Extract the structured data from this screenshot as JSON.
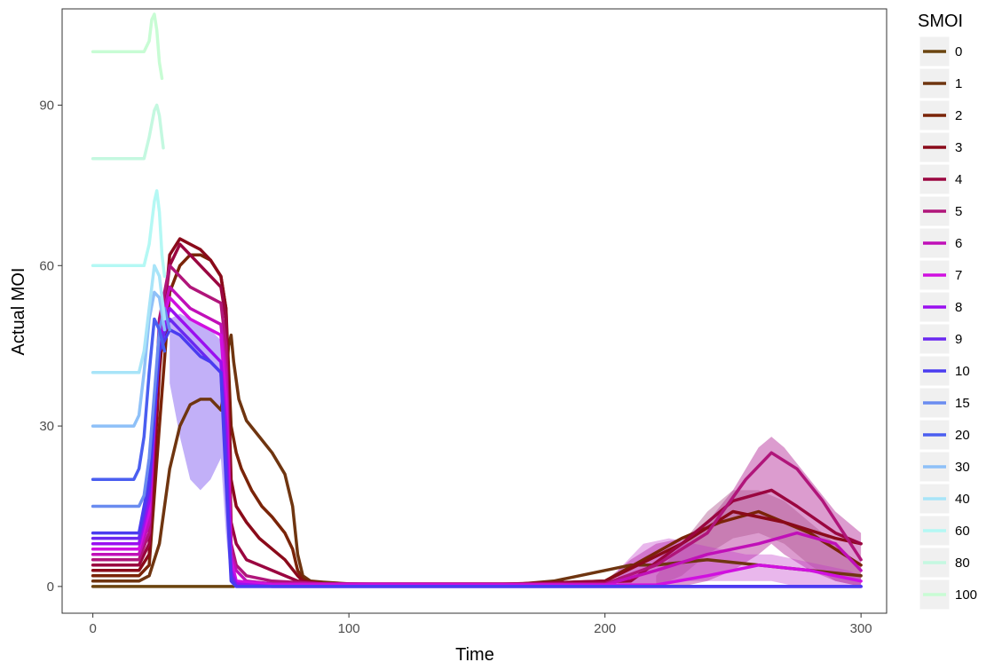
{
  "chart_data": {
    "type": "line",
    "title": "",
    "xlabel": "Time",
    "ylabel": "Actual MOI",
    "xlim": [
      -12,
      310
    ],
    "ylim": [
      -5,
      108
    ],
    "x_ticks": [
      0,
      100,
      200,
      300
    ],
    "y_ticks": [
      0,
      30,
      60,
      90
    ],
    "x_tick_labels": [
      "0",
      "100",
      "200",
      "300"
    ],
    "y_tick_labels": [
      "0",
      "30",
      "60",
      "90"
    ],
    "grid": false,
    "legend": {
      "title": "SMOI",
      "position": "right",
      "entries": [
        {
          "label": "0",
          "color": "#6b4510"
        },
        {
          "label": "1",
          "color": "#6f3510"
        },
        {
          "label": "2",
          "color": "#7a2408"
        },
        {
          "label": "3",
          "color": "#8a0a1a"
        },
        {
          "label": "4",
          "color": "#9a0640"
        },
        {
          "label": "5",
          "color": "#b0157a"
        },
        {
          "label": "6",
          "color": "#c010b8"
        },
        {
          "label": "7",
          "color": "#d010e0"
        },
        {
          "label": "8",
          "color": "#9a10f0"
        },
        {
          "label": "9",
          "color": "#6a28f0"
        },
        {
          "label": "10",
          "color": "#4a3cf0"
        },
        {
          "label": "15",
          "color": "#6a8cf0"
        },
        {
          "label": "20",
          "color": "#4a5ef0"
        },
        {
          "label": "30",
          "color": "#8ec0f8"
        },
        {
          "label": "40",
          "color": "#a8e4f8"
        },
        {
          "label": "60",
          "color": "#b4f8f4"
        },
        {
          "label": "80",
          "color": "#c4f8e0"
        },
        {
          "label": "100",
          "color": "#c8fcd4"
        }
      ]
    },
    "bands": [
      {
        "series": "8",
        "color": "#9a7cf4",
        "opacity": 0.6,
        "x": [
          30,
          34,
          38,
          42,
          46,
          50,
          52,
          54
        ],
        "upper": [
          50,
          51,
          50,
          49,
          48,
          46,
          44,
          0
        ],
        "lower": [
          38,
          28,
          20,
          18,
          20,
          24,
          10,
          0
        ]
      },
      {
        "series": "5",
        "color": "#c04aa8",
        "opacity": 0.55,
        "x": [
          200,
          210,
          220,
          230,
          240,
          250,
          260,
          265,
          270,
          280,
          290,
          300
        ],
        "upper": [
          1,
          5,
          8,
          9,
          12,
          18,
          26,
          28,
          26,
          20,
          14,
          10
        ],
        "lower": [
          0,
          0,
          0,
          0,
          1,
          3,
          6,
          8,
          6,
          3,
          1,
          0
        ]
      },
      {
        "series": "4",
        "color": "#b05890",
        "opacity": 0.45,
        "x": [
          220,
          230,
          240,
          250,
          260,
          270,
          280,
          290,
          300
        ],
        "upper": [
          2,
          8,
          14,
          18,
          18,
          16,
          12,
          8,
          4
        ],
        "lower": [
          0,
          2,
          6,
          9,
          10,
          8,
          4,
          1,
          0
        ]
      },
      {
        "series": "6",
        "color": "#c030c8",
        "opacity": 0.35,
        "x": [
          205,
          215,
          225,
          235,
          245,
          255,
          265,
          275,
          285,
          295,
          300
        ],
        "upper": [
          3,
          8,
          9,
          8,
          7,
          6,
          6,
          5,
          4,
          3,
          2
        ],
        "lower": [
          0,
          0,
          1,
          1,
          1,
          1,
          1,
          0,
          0,
          0,
          0
        ]
      }
    ],
    "series": [
      {
        "name": "0",
        "color": "#6b4510",
        "x": [
          0,
          55
        ],
        "y": [
          0,
          0
        ]
      },
      {
        "name": "1",
        "color": "#6f3510",
        "x": [
          0,
          18,
          22,
          26,
          30,
          34,
          38,
          42,
          46,
          50,
          52,
          53,
          54,
          55,
          57,
          60,
          65,
          70,
          75,
          78,
          80,
          82,
          85,
          90,
          100,
          120,
          140,
          160,
          180,
          200,
          210,
          220,
          240,
          260,
          280,
          300
        ],
        "y": [
          1,
          1,
          2,
          8,
          22,
          30,
          34,
          35,
          35,
          33,
          38,
          45,
          47,
          42,
          35,
          31,
          28,
          25,
          21,
          15,
          6,
          2,
          1,
          0.8,
          0.5,
          0.2,
          0.3,
          0.2,
          1,
          3,
          4,
          4,
          5,
          4,
          3,
          2
        ]
      },
      {
        "name": "2",
        "color": "#7a2408",
        "x": [
          0,
          18,
          22,
          26,
          30,
          34,
          38,
          42,
          46,
          50,
          52,
          54,
          56,
          58,
          62,
          66,
          70,
          75,
          78,
          80,
          82,
          84,
          90,
          120,
          160,
          200,
          230,
          245,
          260,
          280,
          300
        ],
        "y": [
          2,
          2,
          4,
          30,
          55,
          60,
          62,
          62,
          61,
          58,
          52,
          30,
          25,
          22,
          18,
          15,
          13,
          10,
          7,
          3,
          1.5,
          1,
          0.5,
          0.3,
          0.3,
          1,
          9,
          12,
          14,
          10,
          4
        ]
      },
      {
        "name": "3",
        "color": "#8a0a1a",
        "x": [
          0,
          18,
          22,
          26,
          30,
          34,
          38,
          42,
          46,
          50,
          52,
          54,
          56,
          60,
          65,
          70,
          75,
          80,
          82,
          90,
          150,
          200,
          230,
          250,
          270,
          290,
          300
        ],
        "y": [
          3,
          3,
          6,
          40,
          62,
          65,
          64,
          63,
          61,
          58,
          52,
          20,
          15,
          12,
          9,
          7,
          5,
          2,
          1,
          0.5,
          0.3,
          1,
          8,
          14,
          12,
          9,
          8
        ]
      },
      {
        "name": "4",
        "color": "#9a0640",
        "x": [
          0,
          18,
          22,
          26,
          30,
          34,
          38,
          42,
          46,
          50,
          52,
          54,
          56,
          60,
          70,
          80,
          90,
          150,
          210,
          230,
          250,
          265,
          275,
          290,
          300
        ],
        "y": [
          4,
          4,
          8,
          45,
          60,
          64,
          62,
          60,
          58,
          56,
          50,
          12,
          8,
          5,
          3,
          1,
          0.5,
          0.3,
          1,
          8,
          16,
          18,
          15,
          10,
          8
        ]
      },
      {
        "name": "5",
        "color": "#b0157a",
        "x": [
          0,
          18,
          22,
          26,
          30,
          34,
          38,
          42,
          46,
          50,
          52,
          54,
          56,
          60,
          70,
          90,
          200,
          220,
          240,
          255,
          265,
          275,
          285,
          300
        ],
        "y": [
          5,
          5,
          10,
          50,
          60,
          58,
          56,
          55,
          54,
          53,
          45,
          8,
          4,
          2,
          1,
          0.5,
          0.5,
          4,
          10,
          20,
          25,
          22,
          16,
          5
        ]
      },
      {
        "name": "6",
        "color": "#c010b8",
        "x": [
          0,
          18,
          22,
          26,
          30,
          34,
          38,
          42,
          46,
          50,
          52,
          54,
          56,
          60,
          70,
          200,
          220,
          240,
          260,
          275,
          290,
          300
        ],
        "y": [
          6,
          6,
          12,
          48,
          56,
          54,
          52,
          51,
          50,
          49,
          40,
          6,
          3,
          1,
          0.5,
          0.3,
          3,
          6,
          8,
          10,
          8,
          3
        ]
      },
      {
        "name": "7",
        "color": "#d010e0",
        "x": [
          0,
          18,
          22,
          26,
          30,
          34,
          38,
          42,
          46,
          50,
          52,
          54,
          56,
          70,
          220,
          240,
          260,
          280,
          300
        ],
        "y": [
          7,
          7,
          14,
          48,
          54,
          52,
          50,
          49,
          48,
          47,
          35,
          5,
          1,
          0.3,
          0.3,
          2,
          4,
          3,
          1
        ]
      },
      {
        "name": "8",
        "color": "#9a10f0",
        "x": [
          0,
          18,
          22,
          26,
          30,
          34,
          38,
          42,
          46,
          50,
          52,
          54,
          56,
          70,
          300
        ],
        "y": [
          8,
          8,
          16,
          46,
          52,
          50,
          48,
          46,
          44,
          42,
          30,
          3,
          0.5,
          0,
          0
        ]
      },
      {
        "name": "9",
        "color": "#6a28f0",
        "x": [
          0,
          18,
          22,
          26,
          30,
          34,
          38,
          42,
          46,
          50,
          52,
          54,
          56,
          70,
          300
        ],
        "y": [
          9,
          9,
          18,
          45,
          50,
          48,
          46,
          44,
          42,
          40,
          25,
          2,
          0,
          0,
          0
        ]
      },
      {
        "name": "10",
        "color": "#4a3cf0",
        "x": [
          0,
          18,
          22,
          26,
          30,
          34,
          38,
          42,
          46,
          50,
          52,
          54,
          56,
          300
        ],
        "y": [
          10,
          10,
          20,
          44,
          48,
          47,
          45,
          43,
          42,
          40,
          20,
          1,
          0,
          0
        ]
      },
      {
        "name": "15",
        "color": "#6a8cf0",
        "x": [
          0,
          18,
          20,
          22,
          24,
          26,
          28,
          30
        ],
        "y": [
          15,
          15,
          17,
          24,
          36,
          48,
          52,
          48
        ]
      },
      {
        "name": "20",
        "color": "#4a5ef0",
        "x": [
          0,
          16,
          18,
          20,
          22,
          24,
          26,
          28
        ],
        "y": [
          20,
          20,
          22,
          28,
          40,
          50,
          48,
          44
        ]
      },
      {
        "name": "30",
        "color": "#8ec0f8",
        "x": [
          0,
          16,
          18,
          20,
          22,
          24,
          26,
          28
        ],
        "y": [
          30,
          30,
          32,
          40,
          50,
          55,
          54,
          48
        ]
      },
      {
        "name": "40",
        "color": "#a8e4f8",
        "x": [
          0,
          18,
          20,
          22,
          24,
          26,
          28
        ],
        "y": [
          40,
          40,
          44,
          52,
          60,
          58,
          50
        ]
      },
      {
        "name": "60",
        "color": "#b4f8f4",
        "x": [
          0,
          20,
          22,
          24,
          25,
          26,
          27,
          28
        ],
        "y": [
          60,
          60,
          64,
          72,
          74,
          70,
          62,
          58
        ]
      },
      {
        "name": "80",
        "color": "#c4f8e0",
        "x": [
          0,
          20,
          22,
          24,
          25,
          26,
          27,
          27.5
        ],
        "y": [
          80,
          80,
          84,
          89,
          90,
          88,
          84,
          82
        ]
      },
      {
        "name": "100",
        "color": "#c8fcd4",
        "x": [
          0,
          20,
          22,
          23,
          24,
          25,
          26,
          27
        ],
        "y": [
          100,
          100,
          102,
          106,
          107,
          104,
          98,
          95
        ]
      }
    ]
  }
}
